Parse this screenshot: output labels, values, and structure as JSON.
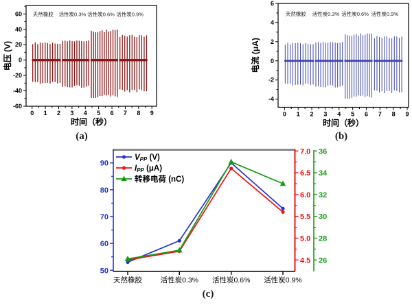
{
  "figure": {
    "captions": [
      {
        "id": "a",
        "label": "(a)"
      },
      {
        "id": "b",
        "label": "(b)"
      },
      {
        "id": "c",
        "label": "(c)"
      }
    ]
  },
  "chart_data": [
    {
      "id": "a",
      "type": "line",
      "subtype": "spike-train",
      "title": "",
      "xlabel": "时间（秒）",
      "ylabel": "电压 (V)",
      "xlim": [
        -0.45,
        9.35
      ],
      "ylim": [
        -60,
        71
      ],
      "xticks": [
        0,
        1,
        2,
        3,
        4,
        5,
        6,
        7,
        8,
        9
      ],
      "yticks": [
        -60,
        -40,
        -20,
        0,
        20,
        40,
        60
      ],
      "x_minor_step": 0.5,
      "y_minor_step": 10,
      "line_color": "#8e1616",
      "annotation_y": 57,
      "groups": [
        {
          "label": "天然橡胶",
          "t_start": 0.05,
          "t_end": 2.1,
          "spikes": 12,
          "peak_pos": 23,
          "peak_neg": -31
        },
        {
          "label": "活性炭0.3%",
          "t_start": 2.3,
          "t_end": 4.25,
          "spikes": 12,
          "peak_pos": 26,
          "peak_neg": -36
        },
        {
          "label": "活性炭0.6%",
          "t_start": 4.45,
          "t_end": 6.4,
          "spikes": 13,
          "peak_pos": 40,
          "peak_neg": -50
        },
        {
          "label": "活性炭0.9%",
          "t_start": 6.6,
          "t_end": 8.6,
          "spikes": 12,
          "peak_pos": 33,
          "peak_neg": -42
        }
      ]
    },
    {
      "id": "b",
      "type": "line",
      "subtype": "spike-train",
      "title": "",
      "xlabel": "时间（秒）",
      "ylabel": "电流 (μA)",
      "xlim": [
        -0.47,
        9.1
      ],
      "ylim": [
        -4.85,
        6
      ],
      "xticks": [
        0,
        1,
        2,
        3,
        4,
        5,
        6,
        7,
        8,
        9
      ],
      "yticks": [
        -4,
        -2,
        0,
        2,
        4,
        6
      ],
      "x_minor_step": 0.5,
      "y_minor_step": 1,
      "line_color": "#3c43ae",
      "annotation_y": 4.7,
      "groups": [
        {
          "label": "天然橡胶",
          "t_start": 0.05,
          "t_end": 2.1,
          "spikes": 12,
          "peak_pos": 1.9,
          "peak_neg": -2.6
        },
        {
          "label": "活性炭0.3%",
          "t_start": 2.3,
          "t_end": 4.25,
          "spikes": 12,
          "peak_pos": 2.0,
          "peak_neg": -2.8
        },
        {
          "label": "活性炭0.6%",
          "t_start": 4.45,
          "t_end": 6.4,
          "spikes": 13,
          "peak_pos": 2.9,
          "peak_neg": -4.0
        },
        {
          "label": "活性炭0.9%",
          "t_start": 6.6,
          "t_end": 8.6,
          "spikes": 12,
          "peak_pos": 2.6,
          "peak_neg": -3.4
        }
      ]
    },
    {
      "id": "c",
      "type": "line",
      "title": "",
      "categories": [
        "天然橡胶",
        "活性炭0.3%",
        "活性炭0.6%",
        "活性炭0.9%"
      ],
      "series": [
        {
          "name": "Vpp (V)",
          "legend": {
            "pre": "V",
            "italic": true,
            "sub": "PP",
            "post": " (V)"
          },
          "color": "#2433cc",
          "marker": "circle",
          "axis": "left",
          "values": [
            53,
            61,
            90,
            73
          ]
        },
        {
          "name": "Ipp (μA)",
          "legend": {
            "pre": "I",
            "italic": true,
            "sub": "PP",
            "post": " (μA)"
          },
          "color": "#ee1111",
          "marker": "circle",
          "axis": "red",
          "values": [
            4.5,
            4.7,
            6.6,
            5.6
          ]
        },
        {
          "name": "转移电荷 (nC)",
          "legend": {
            "pre": "转移电荷",
            "italic": false,
            "sub": "",
            "post": " (nC)"
          },
          "color": "#159b15",
          "marker": "triangle",
          "axis": "green",
          "values": [
            26.1,
            26.9,
            35.0,
            33.0
          ]
        }
      ],
      "axes": {
        "left": {
          "range": [
            50,
            90
          ],
          "ticks": [
            "50",
            "60",
            "70",
            "80",
            "90"
          ],
          "minor_step": 5,
          "color": "#2433cc"
        },
        "red": {
          "range": [
            4.5,
            7.0
          ],
          "ticks": [
            "4.5",
            "5.0",
            "5.5",
            "6.0",
            "6.5",
            "7.0"
          ],
          "minor_step": 0.25,
          "color": "#ee1111"
        },
        "green": {
          "range": [
            26,
            36
          ],
          "ticks": [
            "26",
            "28",
            "30",
            "32",
            "34",
            "36"
          ],
          "minor_step": 1,
          "color": "#159b15"
        }
      },
      "top_spine_color": "#8c8c8c",
      "legend_position": "top-left"
    }
  ]
}
